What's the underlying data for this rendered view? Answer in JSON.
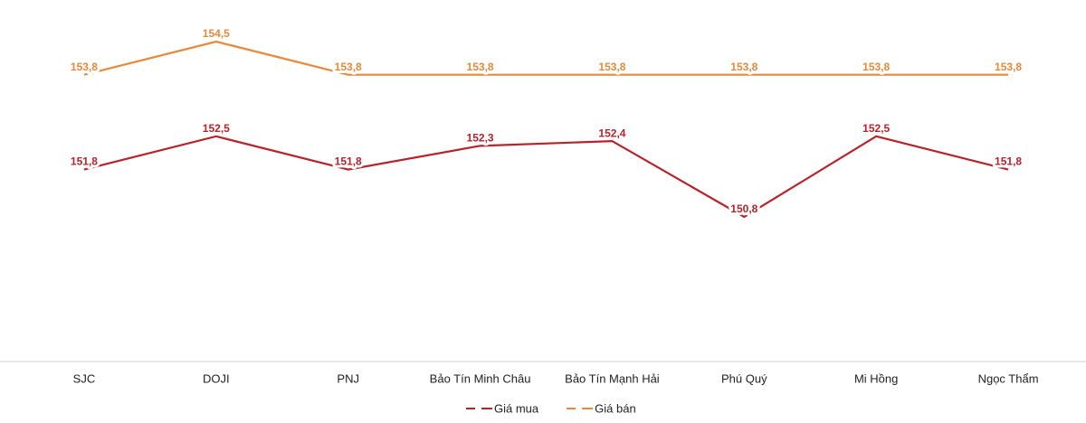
{
  "chart_data": {
    "type": "line",
    "categories": [
      "SJC",
      "DOJI",
      "PNJ",
      "Bảo Tín Minh Châu",
      "Bảo Tín Mạnh Hải",
      "Phú Quý",
      "Mi Hồng",
      "Ngọc Thẩm"
    ],
    "series": [
      {
        "name": "Giá mua",
        "color": "#b8232a",
        "values": [
          151.8,
          152.5,
          151.8,
          152.3,
          152.4,
          150.8,
          152.5,
          151.8
        ],
        "value_labels": [
          "151,8",
          "152,5",
          "151,8",
          "152,3",
          "152,4",
          "150,8",
          "152,5",
          "151,8"
        ]
      },
      {
        "name": "Giá bán",
        "color": "#e8893a",
        "values": [
          153.8,
          154.5,
          153.8,
          153.8,
          153.8,
          153.8,
          153.8,
          153.8
        ],
        "value_labels": [
          "153,8",
          "154,5",
          "153,8",
          "153,8",
          "153,8",
          "153,8",
          "153,8",
          "153,8"
        ]
      }
    ],
    "legend": "bottom"
  }
}
